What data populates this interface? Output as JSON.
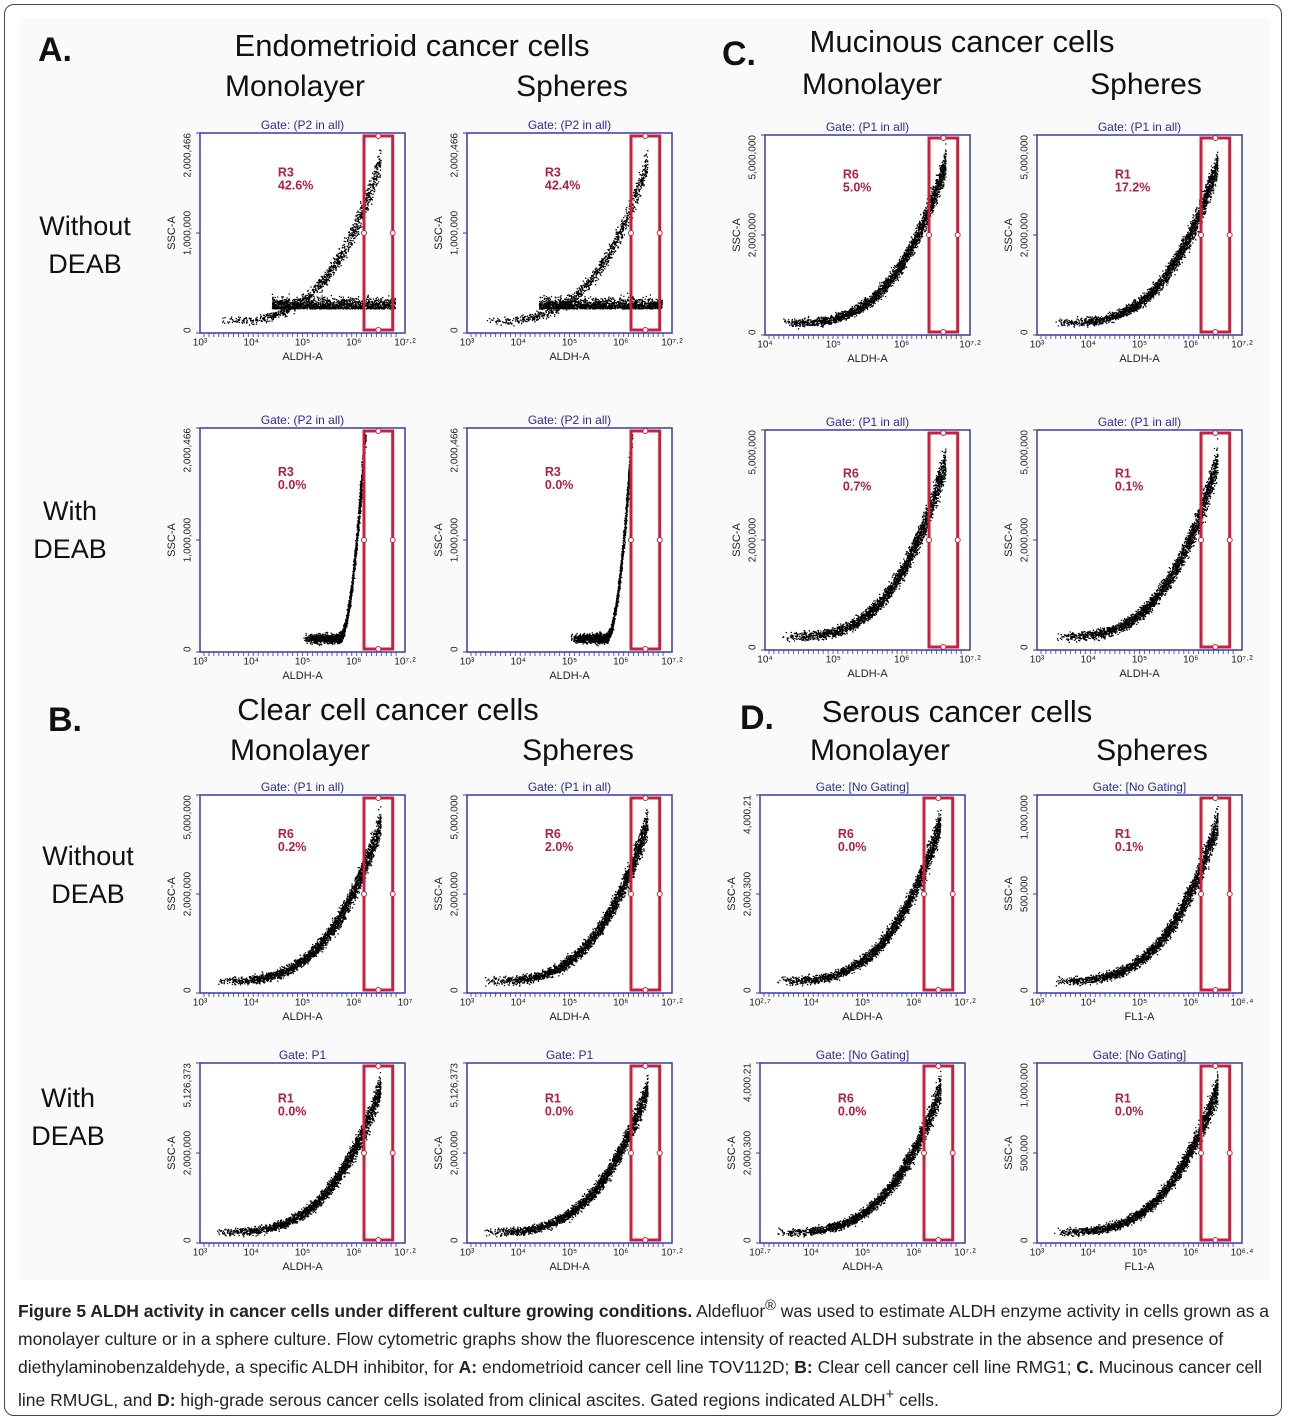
{
  "panels": [
    {
      "letter": "A.",
      "title": "Endometrioid cancer cells",
      "columns": [
        "Monolayer",
        "Spheres"
      ],
      "rows": [
        [
          "Without",
          "DEAB"
        ],
        [
          "With",
          "DEAB"
        ]
      ],
      "plots": [
        {
          "gate": "Gate: (P2 in all)",
          "region": "R3",
          "percent": "42.6%",
          "ylabel": "SSC-A",
          "xlabel": "ALDH-A",
          "yticks": [
            "2,000,466",
            "1,000,000",
            "0"
          ],
          "xticks": [
            "10³",
            "10⁴",
            "10⁵",
            "10⁶",
            "10⁷·²"
          ]
        },
        {
          "gate": "Gate: (P2 in all)",
          "region": "R3",
          "percent": "42.4%",
          "ylabel": "SSC-A",
          "xlabel": "ALDH-A",
          "yticks": [
            "2,000,466",
            "1,000,000",
            "0"
          ],
          "xticks": [
            "10³",
            "10⁴",
            "10⁵",
            "10⁶",
            "10⁷·²"
          ]
        },
        {
          "gate": "Gate: (P2 in all)",
          "region": "R3",
          "percent": "0.0%",
          "ylabel": "SSC-A",
          "xlabel": "ALDH-A",
          "yticks": [
            "2,000,466",
            "1,000,000",
            "0"
          ],
          "xticks": [
            "10³",
            "10⁴",
            "10⁵",
            "10⁶",
            "10⁷·²"
          ]
        },
        {
          "gate": "Gate: (P2 in all)",
          "region": "R3",
          "percent": "0.0%",
          "ylabel": "SSC-A",
          "xlabel": "ALDH-A",
          "yticks": [
            "2,000,466",
            "1,000,000",
            "0"
          ],
          "xticks": [
            "10³",
            "10⁴",
            "10⁵",
            "10⁶",
            "10⁷·²"
          ]
        }
      ]
    },
    {
      "letter": "C.",
      "title": "Mucinous cancer cells",
      "columns": [
        "Monolayer",
        "Spheres"
      ],
      "plots": [
        {
          "gate": "Gate: (P1 in all)",
          "region": "R6",
          "percent": "5.0%",
          "ylabel": "SSC-A",
          "xlabel": "ALDH-A",
          "yticks": [
            "5,000,000",
            "2,000,000",
            "0"
          ],
          "xticks": [
            "10⁴",
            "10⁵",
            "10⁶",
            "10⁷·²"
          ]
        },
        {
          "gate": "Gate: (P1 in all)",
          "region": "R1",
          "percent": "17.2%",
          "ylabel": "SSC-A",
          "xlabel": "ALDH-A",
          "yticks": [
            "5,000,000",
            "2,000,000",
            "0"
          ],
          "xticks": [
            "10³",
            "10⁴",
            "10⁵",
            "10⁶",
            "10⁷·²"
          ]
        },
        {
          "gate": "Gate: (P1 in all)",
          "region": "R6",
          "percent": "0.7%",
          "ylabel": "SSC-A",
          "xlabel": "ALDH-A",
          "yticks": [
            "5,000,000",
            "2,000,000",
            "0"
          ],
          "xticks": [
            "10⁴",
            "10⁵",
            "10⁶",
            "10⁷·²"
          ]
        },
        {
          "gate": "Gate: (P1 in all)",
          "region": "R1",
          "percent": "0.1%",
          "ylabel": "SSC-A",
          "xlabel": "ALDH-A",
          "yticks": [
            "5,000,000",
            "2,000,000",
            "0"
          ],
          "xticks": [
            "10³",
            "10⁴",
            "10⁵",
            "10⁶",
            "10⁷·²"
          ]
        }
      ]
    },
    {
      "letter": "B.",
      "title": "Clear cell cancer cells",
      "columns": [
        "Monolayer",
        "Spheres"
      ],
      "rows": [
        [
          "Without",
          "DEAB"
        ],
        [
          "With",
          "DEAB"
        ]
      ],
      "plots": [
        {
          "gate": "Gate: (P1 in all)",
          "region": "R6",
          "percent": "0.2%",
          "ylabel": "SSC-A",
          "xlabel": "ALDH-A",
          "yticks": [
            "5,000,000",
            "2,000,000",
            "0"
          ],
          "xticks": [
            "10³",
            "10⁴",
            "10⁵",
            "10⁶",
            "10⁷"
          ]
        },
        {
          "gate": "Gate: (P1 in all)",
          "region": "R6",
          "percent": "2.0%",
          "ylabel": "SSC-A",
          "xlabel": "ALDH-A",
          "yticks": [
            "5,000,000",
            "2,000,000",
            "0"
          ],
          "xticks": [
            "10³",
            "10⁴",
            "10⁵",
            "10⁶",
            "10⁷·²"
          ]
        },
        {
          "gate": "Gate: P1",
          "region": "R1",
          "percent": "0.0%",
          "ylabel": "SSC-A",
          "xlabel": "ALDH-A",
          "yticks": [
            "5,126,373",
            "2,000,000",
            "0"
          ],
          "xticks": [
            "10³",
            "10⁴",
            "10⁵",
            "10⁶",
            "10⁷·²"
          ]
        },
        {
          "gate": "Gate: P1",
          "region": "R1",
          "percent": "0.0%",
          "ylabel": "SSC-A",
          "xlabel": "ALDH-A",
          "yticks": [
            "5,126,373",
            "2,000,000",
            "0"
          ],
          "xticks": [
            "10³",
            "10⁴",
            "10⁵",
            "10⁶",
            "10⁷·²"
          ]
        }
      ]
    },
    {
      "letter": "D.",
      "title": "Serous cancer cells",
      "columns": [
        "Monolayer",
        "Spheres"
      ],
      "plots": [
        {
          "gate": "Gate: [No Gating]",
          "region": "R6",
          "percent": "0.0%",
          "ylabel": "SSC-A",
          "xlabel": "ALDH-A",
          "yticks": [
            "4,000.21",
            "2,000,300",
            "0"
          ],
          "xticks": [
            "10²·⁷",
            "10⁴",
            "10⁵",
            "10⁶",
            "10⁷·²"
          ]
        },
        {
          "gate": "Gate: [No Gating]",
          "region": "R1",
          "percent": "0.1%",
          "ylabel": "SSC-A",
          "xlabel": "FL1-A",
          "yticks": [
            "1,000,000",
            "500,000",
            "0"
          ],
          "xticks": [
            "10³",
            "10⁴",
            "10⁵",
            "10⁶",
            "10⁶·⁴"
          ]
        },
        {
          "gate": "Gate: [No Gating]",
          "region": "R6",
          "percent": "0.0%",
          "ylabel": "SSC-A",
          "xlabel": "ALDH-A",
          "yticks": [
            "4,000.21",
            "2,000,300",
            "0"
          ],
          "xticks": [
            "10²·⁷",
            "10⁴",
            "10⁵",
            "10⁶",
            "10⁷·²"
          ]
        },
        {
          "gate": "Gate: [No Gating]",
          "region": "R1",
          "percent": "0.0%",
          "ylabel": "SSC-A",
          "xlabel": "FL1-A",
          "yticks": [
            "1,000,000",
            "500,000",
            "0"
          ],
          "xticks": [
            "10³",
            "10⁴",
            "10⁵",
            "10⁶",
            "10⁶·⁴"
          ]
        }
      ]
    }
  ],
  "caption": {
    "label": "Figure 5 ALDH activity in cancer cells under different culture growing conditions.",
    "parts": [
      {
        "text": " Aldefluor"
      },
      {
        "sup": "®"
      },
      {
        "text": " was used to estimate ALDH enzyme activity in cells grown as a monolayer culture or in a sphere culture. Flow cytometric graphs show the fluorescence intensity of reacted ALDH substrate in the absence and presence of diethylaminobenzaldehyde, a specific ALDH inhibitor, for "
      },
      {
        "bold": "A:"
      },
      {
        "text": " endometrioid cancer cell line TOV112D; "
      },
      {
        "bold": "B:"
      },
      {
        "text": " Clear cell cancer cell line RMG1; "
      },
      {
        "bold": "C."
      },
      {
        "text": " Mucinous cancer cell line RMUGL, and "
      },
      {
        "bold": "D:"
      },
      {
        "text": " high-grade serous cancer cells isolated from clinical ascites. Gated regions indicated ALDH"
      },
      {
        "sup": "+"
      },
      {
        "text": " cells."
      }
    ]
  }
}
